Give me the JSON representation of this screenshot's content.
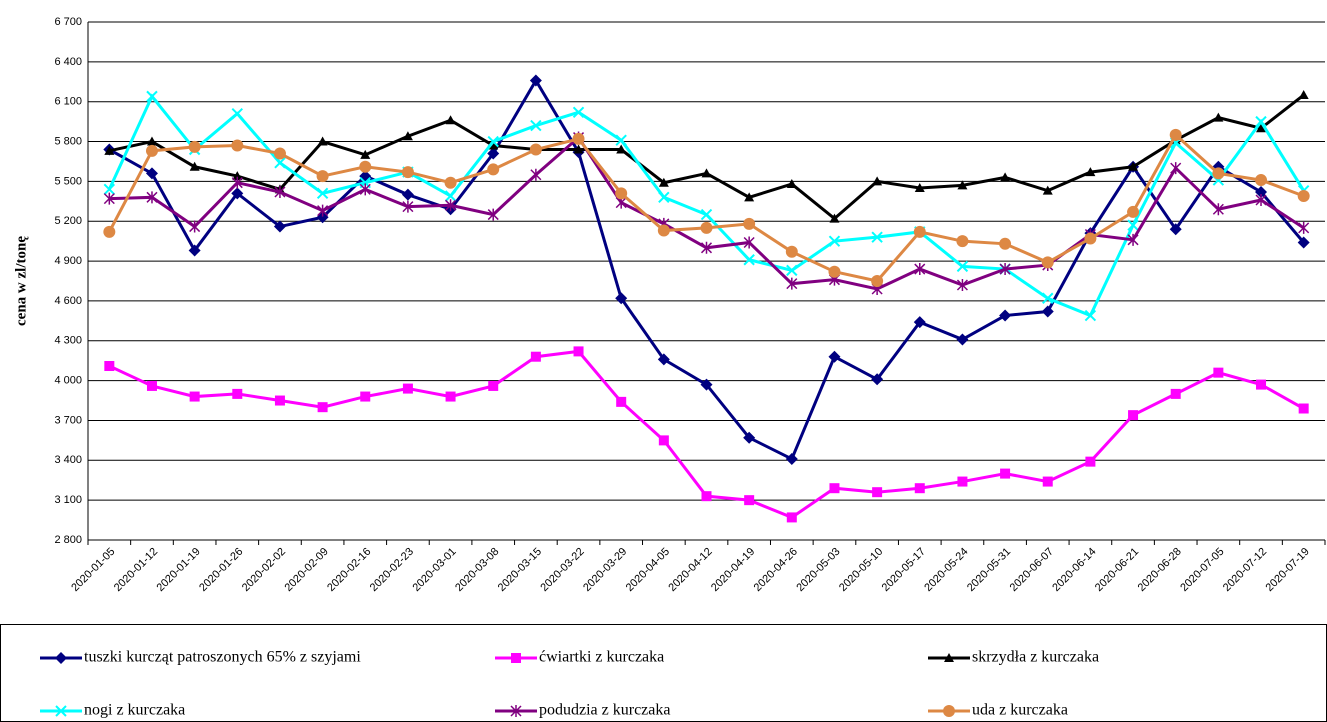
{
  "chart_data": {
    "type": "line",
    "y_label": "cena w zl/tonę",
    "categories": [
      "2020-01-05",
      "2020-01-12",
      "2020-01-19",
      "2020-01-26",
      "2020-02-02",
      "2020-02-09",
      "2020-02-16",
      "2020-02-23",
      "2020-03-01",
      "2020-03-08",
      "2020-03-15",
      "2020-03-22",
      "2020-03-29",
      "2020-04-05",
      "2020-04-12",
      "2020-04-19",
      "2020-04-26",
      "2020-05-03",
      "2020-05-10",
      "2020-05-17",
      "2020-05-24",
      "2020-05-31",
      "2020-06-07",
      "2020-06-14",
      "2020-06-21",
      "2020-06-28",
      "2020-07-05",
      "2020-07-12",
      "2020-07-19"
    ],
    "ylim": [
      2800,
      6700
    ],
    "yticks": [
      {
        "value": 2800,
        "label": "2 800"
      },
      {
        "value": 3100,
        "label": "3 100"
      },
      {
        "value": 3400,
        "label": "3 400"
      },
      {
        "value": 3700,
        "label": "3 700"
      },
      {
        "value": 4000,
        "label": "4 000"
      },
      {
        "value": 4300,
        "label": "4 300"
      },
      {
        "value": 4600,
        "label": "4 600"
      },
      {
        "value": 4900,
        "label": "4 900"
      },
      {
        "value": 5200,
        "label": "5 200"
      },
      {
        "value": 5500,
        "label": "5 500"
      },
      {
        "value": 5800,
        "label": "5 800"
      },
      {
        "value": 6100,
        "label": "6 100"
      },
      {
        "value": 6400,
        "label": "6 400"
      },
      {
        "value": 6700,
        "label": "6 700"
      }
    ],
    "grid": true,
    "legend": "bottom",
    "series": [
      {
        "name": "tuszki kurcząt patroszonych 65% z szyjami",
        "color": "#000080",
        "marker": "diamond",
        "values": [
          5740,
          5560,
          4980,
          5410,
          5160,
          5230,
          5540,
          5400,
          5290,
          5710,
          6260,
          5720,
          4620,
          4160,
          3970,
          3570,
          3410,
          4180,
          4010,
          4440,
          4310,
          4490,
          4520,
          5110,
          5610,
          5140,
          5610,
          5420,
          5040
        ]
      },
      {
        "name": "ćwiartki z kurczaka",
        "color": "#ff00ff",
        "marker": "square",
        "values": [
          4110,
          3960,
          3880,
          3900,
          3850,
          3800,
          3880,
          3940,
          3880,
          3960,
          4180,
          4220,
          3840,
          3550,
          3130,
          3100,
          2970,
          3190,
          3160,
          3190,
          3240,
          3300,
          3240,
          3390,
          3740,
          3900,
          4060,
          3970,
          3790
        ]
      },
      {
        "name": "skrzydła z kurczaka",
        "color": "#000000",
        "marker": "triangle",
        "values": [
          5730,
          5800,
          5610,
          5540,
          5440,
          5800,
          5700,
          5840,
          5960,
          5770,
          5740,
          5740,
          5740,
          5490,
          5560,
          5380,
          5480,
          5220,
          5500,
          5450,
          5470,
          5530,
          5430,
          5570,
          5610,
          5810,
          5980,
          5900,
          6150
        ]
      },
      {
        "name": "nogi z kurczaka",
        "color": "#00ffff",
        "marker": "x",
        "values": [
          5440,
          6140,
          5740,
          6010,
          5640,
          5410,
          5490,
          5570,
          5390,
          5800,
          5920,
          6020,
          5810,
          5380,
          5250,
          4910,
          4830,
          5050,
          5080,
          5120,
          4860,
          4840,
          4620,
          4490,
          5170,
          5790,
          5510,
          5950,
          5430
        ]
      },
      {
        "name": "podudzia z kurczaka",
        "color": "#800080",
        "marker": "star",
        "values": [
          5370,
          5380,
          5160,
          5490,
          5420,
          5280,
          5440,
          5310,
          5320,
          5250,
          5550,
          5830,
          5340,
          5180,
          5000,
          5040,
          4730,
          4760,
          4690,
          4840,
          4720,
          4840,
          4870,
          5100,
          5060,
          5600,
          5290,
          5360,
          5150
        ]
      },
      {
        "name": "uda z kurczaka",
        "color": "#dd8844",
        "marker": "circle",
        "values": [
          5120,
          5730,
          5760,
          5770,
          5710,
          5540,
          5610,
          5570,
          5490,
          5590,
          5740,
          5820,
          5410,
          5130,
          5150,
          5180,
          4970,
          4820,
          4750,
          5120,
          5050,
          5030,
          4890,
          5070,
          5270,
          5850,
          5560,
          5510,
          5390
        ]
      }
    ]
  }
}
